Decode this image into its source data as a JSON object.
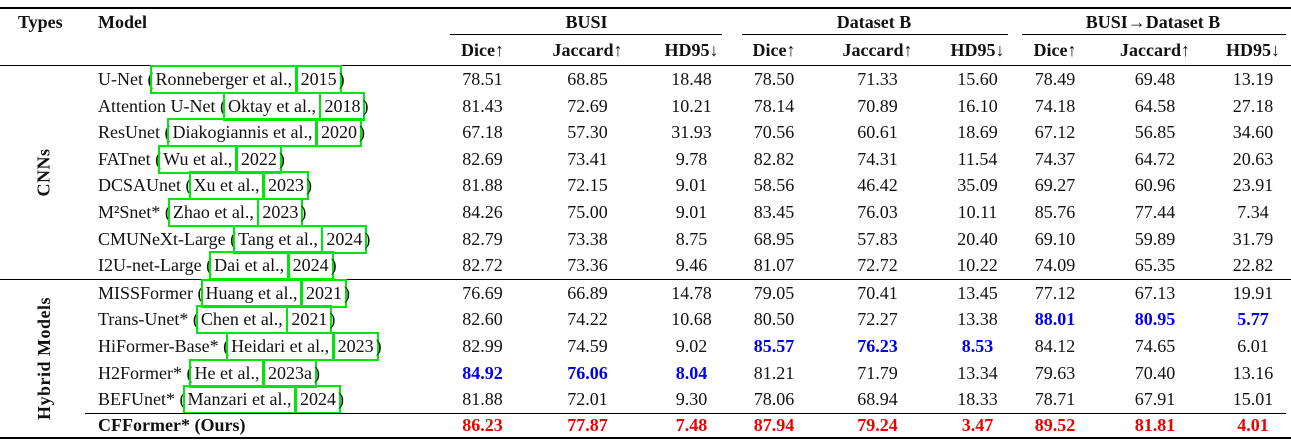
{
  "colors": {
    "best_value": "#ee0000",
    "second_best_value": "#0000ee",
    "citation_box": "#00e60b",
    "text": "#111111"
  },
  "table": {
    "headers": {
      "types": "Types",
      "model": "Model"
    },
    "groups": [
      {
        "label": "BUSI",
        "metrics": [
          "Dice↑",
          "Jaccard↑",
          "HD95↓"
        ]
      },
      {
        "label": "Dataset B",
        "metrics": [
          "Dice↑",
          "Jaccard↑",
          "HD95↓"
        ]
      },
      {
        "label": "BUSI→Dataset B",
        "metrics": [
          "Dice↑",
          "Jaccard↑",
          "HD95↓"
        ]
      }
    ],
    "sections": [
      {
        "type_label": "CNNs",
        "rows": [
          {
            "model": {
              "prefix": "U-Net (",
              "author": "Ronneberger et al.,",
              "year": "2015",
              "suffix": ")"
            },
            "values": [
              "78.51",
              "68.85",
              "18.48",
              "78.50",
              "71.33",
              "15.60",
              "78.49",
              "69.48",
              "13.19"
            ],
            "styles": [
              null,
              null,
              null,
              null,
              null,
              null,
              null,
              null,
              null
            ],
            "bold": false
          },
          {
            "model": {
              "prefix": "Attention U-Net (",
              "author": "Oktay et al.,",
              "year": "2018",
              "suffix": ")"
            },
            "values": [
              "81.43",
              "72.69",
              "10.21",
              "78.14",
              "70.89",
              "16.10",
              "74.18",
              "64.58",
              "27.18"
            ],
            "styles": [
              null,
              null,
              null,
              null,
              null,
              null,
              null,
              null,
              null
            ],
            "bold": false
          },
          {
            "model": {
              "prefix": "ResUnet (",
              "author": "Diakogiannis et al.,",
              "year": "2020",
              "suffix": ")"
            },
            "values": [
              "67.18",
              "57.30",
              "31.93",
              "70.56",
              "60.61",
              "18.69",
              "67.12",
              "56.85",
              "34.60"
            ],
            "styles": [
              null,
              null,
              null,
              null,
              null,
              null,
              null,
              null,
              null
            ],
            "bold": false
          },
          {
            "model": {
              "prefix": "FATnet (",
              "author": "Wu et al.,",
              "year": "2022",
              "suffix": ")"
            },
            "values": [
              "82.69",
              "73.41",
              "9.78",
              "82.82",
              "74.31",
              "11.54",
              "74.37",
              "64.72",
              "20.63"
            ],
            "styles": [
              null,
              null,
              null,
              null,
              null,
              null,
              null,
              null,
              null
            ],
            "bold": false
          },
          {
            "model": {
              "prefix": "DCSAUnet (",
              "author": "Xu et al.,",
              "year": "2023",
              "suffix": ")"
            },
            "values": [
              "81.88",
              "72.15",
              "9.01",
              "58.56",
              "46.42",
              "35.09",
              "69.27",
              "60.96",
              "23.91"
            ],
            "styles": [
              null,
              null,
              null,
              null,
              null,
              null,
              null,
              null,
              null
            ],
            "bold": false
          },
          {
            "model": {
              "prefix": "M²Snet* (",
              "author": "Zhao et al.,",
              "year": "2023",
              "suffix": ")"
            },
            "values": [
              "84.26",
              "75.00",
              "9.01",
              "83.45",
              "76.03",
              "10.11",
              "85.76",
              "77.44",
              "7.34"
            ],
            "styles": [
              null,
              null,
              null,
              null,
              null,
              null,
              null,
              null,
              null
            ],
            "bold": false
          },
          {
            "model": {
              "prefix": "CMUNeXt-Large (",
              "author": "Tang et al.,",
              "year": "2024",
              "suffix": ")"
            },
            "values": [
              "82.79",
              "73.38",
              "8.75",
              "68.95",
              "57.83",
              "20.40",
              "69.10",
              "59.89",
              "31.79"
            ],
            "styles": [
              null,
              null,
              null,
              null,
              null,
              null,
              null,
              null,
              null
            ],
            "bold": false
          },
          {
            "model": {
              "prefix": "I2U-net-Large (",
              "author": "Dai et al.,",
              "year": "2024",
              "suffix": ")"
            },
            "values": [
              "82.72",
              "73.36",
              "9.46",
              "81.07",
              "72.72",
              "10.22",
              "74.09",
              "65.35",
              "22.82"
            ],
            "styles": [
              null,
              null,
              null,
              null,
              null,
              null,
              null,
              null,
              null
            ],
            "bold": false
          }
        ]
      },
      {
        "type_label": "Hybrid Models",
        "rows": [
          {
            "model": {
              "prefix": "MISSFormer (",
              "author": "Huang et al.,",
              "year": "2021",
              "suffix": ")"
            },
            "values": [
              "76.69",
              "66.89",
              "14.78",
              "79.05",
              "70.41",
              "13.45",
              "77.12",
              "67.13",
              "19.91"
            ],
            "styles": [
              null,
              null,
              null,
              null,
              null,
              null,
              null,
              null,
              null
            ],
            "bold": false
          },
          {
            "model": {
              "prefix": "Trans-Unet* (",
              "author": "Chen et al.,",
              "year": "2021",
              "suffix": ")"
            },
            "values": [
              "82.60",
              "74.22",
              "10.68",
              "80.50",
              "72.27",
              "13.38",
              "88.01",
              "80.95",
              "5.77"
            ],
            "styles": [
              null,
              null,
              null,
              null,
              null,
              null,
              "second",
              "second",
              "second"
            ],
            "bold": false
          },
          {
            "model": {
              "prefix": "HiFormer-Base* (",
              "author": "Heidari et al.,",
              "year": "2023",
              "suffix": ")"
            },
            "values": [
              "82.99",
              "74.59",
              "9.02",
              "85.57",
              "76.23",
              "8.53",
              "84.12",
              "74.65",
              "6.01"
            ],
            "styles": [
              null,
              null,
              null,
              "second",
              "second",
              "second",
              null,
              null,
              null
            ],
            "bold": false
          },
          {
            "model": {
              "prefix": "H2Former* (",
              "author": "He et al.,",
              "year": "2023a",
              "suffix": ")"
            },
            "values": [
              "84.92",
              "76.06",
              "8.04",
              "81.21",
              "71.79",
              "13.34",
              "79.63",
              "70.40",
              "13.16"
            ],
            "styles": [
              "second",
              "second",
              "second",
              null,
              null,
              null,
              null,
              null,
              null
            ],
            "bold": false
          },
          {
            "model": {
              "prefix": "BEFUnet* (",
              "author": "Manzari et al.,",
              "year": "2024",
              "suffix": ")"
            },
            "values": [
              "81.88",
              "72.01",
              "9.30",
              "78.06",
              "68.94",
              "18.33",
              "78.71",
              "67.91",
              "15.01"
            ],
            "styles": [
              null,
              null,
              null,
              null,
              null,
              null,
              null,
              null,
              null
            ],
            "bold": false
          },
          {
            "model": {
              "prefix": "CFFormer* (Ours)",
              "author": null,
              "year": null,
              "suffix": ""
            },
            "values": [
              "86.23",
              "77.87",
              "7.48",
              "87.94",
              "79.24",
              "3.47",
              "89.52",
              "81.81",
              "4.01"
            ],
            "styles": [
              "best",
              "best",
              "best",
              "best",
              "best",
              "best",
              "best",
              "best",
              "best"
            ],
            "bold": true
          }
        ]
      }
    ]
  }
}
